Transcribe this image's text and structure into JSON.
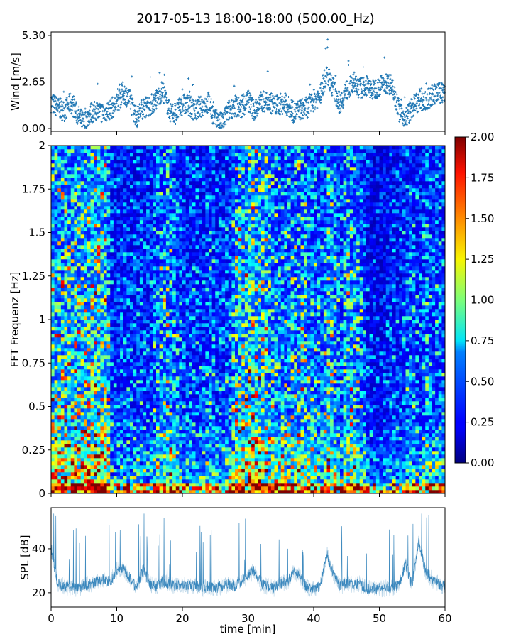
{
  "title": "2017-05-13 18:00-18:00 (500.00_Hz)",
  "chart_data": [
    {
      "type": "scatter",
      "name": "wind",
      "ylabel": "Wind [m/s]",
      "yticks": [
        "0.00",
        "2.65",
        "5.30"
      ],
      "ytick_values": [
        0,
        2.65,
        5.3
      ],
      "xlim": [
        0,
        60
      ],
      "ylim": [
        -0.16,
        5.5
      ],
      "marker": "+",
      "color": "#1f77b4",
      "x_minutes": [
        0,
        1,
        2,
        3,
        4,
        5,
        6,
        7,
        8,
        9,
        10,
        11,
        12,
        13,
        14,
        15,
        16,
        17,
        18,
        19,
        20,
        21,
        22,
        23,
        24,
        25,
        26,
        27,
        28,
        29,
        30,
        31,
        32,
        33,
        34,
        35,
        36,
        37,
        38,
        39,
        40,
        41,
        42,
        43,
        44,
        45,
        46,
        47,
        48,
        49,
        50,
        51,
        52,
        53,
        54,
        55,
        56,
        57,
        58,
        59,
        60
      ],
      "y_mean": [
        1.5,
        1.2,
        1.0,
        1.5,
        0.8,
        0.3,
        0.9,
        1.0,
        0.9,
        1.1,
        1.4,
        2.1,
        1.6,
        0.6,
        1.2,
        1.3,
        1.6,
        2.2,
        1.0,
        0.8,
        1.4,
        1.3,
        1.0,
        1.3,
        1.5,
        0.5,
        0.3,
        1.0,
        1.3,
        1.1,
        1.6,
        1.0,
        1.5,
        1.6,
        1.3,
        1.4,
        1.3,
        0.9,
        1.1,
        1.2,
        1.6,
        1.9,
        3.2,
        2.3,
        1.4,
        2.2,
        2.5,
        2.3,
        2.4,
        2.2,
        2.4,
        2.6,
        2.5,
        1.0,
        0.6,
        1.2,
        1.6,
        1.5,
        1.9,
        2.0,
        2.1
      ],
      "y_max": 5.3
    },
    {
      "type": "heatmap",
      "name": "spectrogram",
      "ylabel": "FFT Frequenz [Hz]",
      "yticks": [
        "0",
        "0.25",
        "0.5",
        "0.75",
        "1",
        "1.25",
        "1.5",
        "1.75",
        "2"
      ],
      "ytick_values": [
        0,
        0.25,
        0.5,
        0.75,
        1,
        1.25,
        1.5,
        1.75,
        2
      ],
      "xlim": [
        0,
        60
      ],
      "ylim": [
        0,
        2
      ],
      "colormap": "jet",
      "clim": [
        0,
        2
      ],
      "colorbar_ticks": [
        "0.00",
        "0.25",
        "0.50",
        "0.75",
        "1.00",
        "1.25",
        "1.50",
        "1.75",
        "2.00"
      ],
      "colorbar_tick_values": [
        0,
        0.25,
        0.5,
        0.75,
        1,
        1.25,
        1.5,
        1.75,
        2
      ],
      "column_level_per_minute": [
        0.6,
        0.55,
        0.6,
        0.55,
        0.6,
        0.6,
        0.65,
        0.7,
        0.65,
        0.3,
        0.3,
        0.3,
        0.28,
        0.3,
        0.3,
        0.3,
        0.45,
        0.5,
        0.45,
        0.4,
        0.3,
        0.3,
        0.3,
        0.3,
        0.35,
        0.3,
        0.3,
        0.35,
        0.55,
        0.6,
        0.65,
        0.65,
        0.6,
        0.5,
        0.45,
        0.45,
        0.45,
        0.5,
        0.55,
        0.45,
        0.4,
        0.4,
        0.55,
        0.45,
        0.35,
        0.55,
        0.5,
        0.4,
        0.25,
        0.22,
        0.22,
        0.25,
        0.3,
        0.25,
        0.35,
        0.35,
        0.3,
        0.4,
        0.35,
        0.35
      ]
    },
    {
      "type": "line",
      "name": "spl",
      "ylabel": "SPL [dB]",
      "xlabel": "time [min]",
      "xticks": [
        "0",
        "10",
        "20",
        "30",
        "40",
        "50",
        "60"
      ],
      "xtick_values": [
        0,
        10,
        20,
        30,
        40,
        50,
        60
      ],
      "yticks": [
        "20",
        "40"
      ],
      "ytick_values": [
        20,
        40
      ],
      "xlim": [
        0,
        60
      ],
      "ylim": [
        13.5,
        58.7
      ],
      "color": "#1f77b4",
      "x_minutes": [
        0,
        1,
        2,
        3,
        4,
        5,
        6,
        7,
        8,
        9,
        10,
        11,
        12,
        13,
        14,
        15,
        16,
        17,
        18,
        19,
        20,
        21,
        22,
        23,
        24,
        25,
        26,
        27,
        28,
        29,
        30,
        31,
        32,
        33,
        34,
        35,
        36,
        37,
        38,
        39,
        40,
        41,
        42,
        43,
        44,
        45,
        46,
        47,
        48,
        49,
        50,
        51,
        52,
        53,
        54,
        55,
        56,
        57,
        58,
        59,
        60
      ],
      "y_base": [
        40,
        24,
        23,
        22,
        22,
        23,
        24,
        25,
        26,
        25,
        30,
        31,
        27,
        22,
        31,
        24,
        23,
        25,
        24,
        23,
        24,
        23,
        23,
        22,
        23,
        22,
        23,
        24,
        23,
        25,
        28,
        30,
        24,
        23,
        22,
        24,
        25,
        30,
        27,
        22,
        22,
        23,
        38,
        28,
        23,
        24,
        24,
        24,
        22,
        22,
        22,
        22,
        22,
        24,
        33,
        23,
        44,
        30,
        26,
        24,
        23
      ],
      "y_max": 56
    }
  ]
}
